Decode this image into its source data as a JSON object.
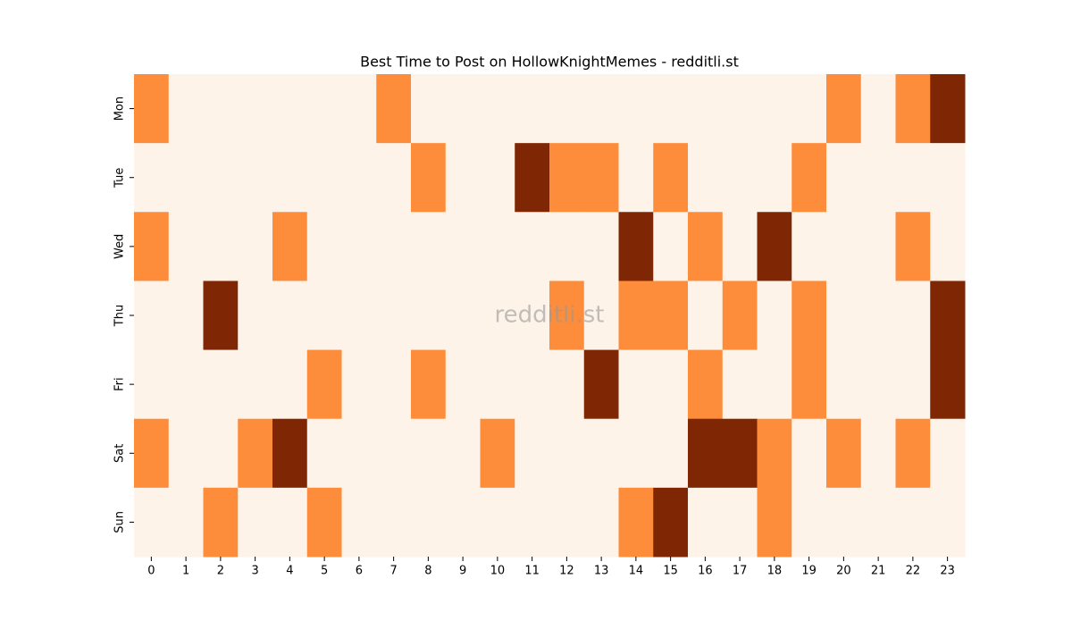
{
  "chart_data": {
    "type": "heatmap",
    "title": "Best Time to Post on HollowKnightMemes - redditli.st",
    "watermark": "redditli.st",
    "x": [
      0,
      1,
      2,
      3,
      4,
      5,
      6,
      7,
      8,
      9,
      10,
      11,
      12,
      13,
      14,
      15,
      16,
      17,
      18,
      19,
      20,
      21,
      22,
      23
    ],
    "categories": [
      "Mon",
      "Tue",
      "Wed",
      "Thu",
      "Fri",
      "Sat",
      "Sun"
    ],
    "vlim": [
      0,
      2
    ],
    "colormap": [
      "#fef3e8",
      "#fd8c3b",
      "#7f2704"
    ],
    "values": [
      [
        1,
        0,
        0,
        0,
        0,
        0,
        0,
        1,
        0,
        0,
        0,
        0,
        0,
        0,
        0,
        0,
        0,
        0,
        0,
        0,
        1,
        0,
        1,
        2
      ],
      [
        0,
        0,
        0,
        0,
        0,
        0,
        0,
        0,
        1,
        0,
        0,
        2,
        1,
        1,
        0,
        1,
        0,
        0,
        0,
        1,
        0,
        0,
        0,
        0
      ],
      [
        1,
        0,
        0,
        0,
        1,
        0,
        0,
        0,
        0,
        0,
        0,
        0,
        0,
        0,
        2,
        0,
        1,
        0,
        2,
        0,
        0,
        0,
        1,
        0
      ],
      [
        0,
        0,
        2,
        0,
        0,
        0,
        0,
        0,
        0,
        0,
        0,
        0,
        1,
        0,
        1,
        1,
        0,
        1,
        0,
        1,
        0,
        0,
        0,
        2
      ],
      [
        0,
        0,
        0,
        0,
        0,
        1,
        0,
        0,
        1,
        0,
        0,
        0,
        0,
        2,
        0,
        0,
        1,
        0,
        0,
        1,
        0,
        0,
        0,
        2
      ],
      [
        1,
        0,
        0,
        1,
        2,
        0,
        0,
        0,
        0,
        0,
        1,
        0,
        0,
        0,
        0,
        0,
        2,
        2,
        1,
        0,
        1,
        0,
        1,
        0
      ],
      [
        0,
        0,
        1,
        0,
        0,
        1,
        0,
        0,
        0,
        0,
        0,
        0,
        0,
        0,
        1,
        2,
        0,
        0,
        1,
        0,
        0,
        0,
        0,
        0
      ]
    ]
  }
}
